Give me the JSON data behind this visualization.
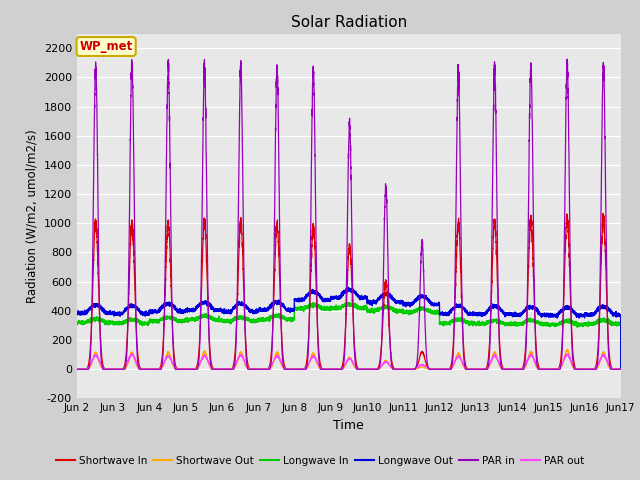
{
  "title": "Solar Radiation",
  "xlabel": "Time",
  "ylabel": "Radiation (W/m2, umol/m2/s)",
  "ylim": [
    -200,
    2300
  ],
  "yticks": [
    -200,
    0,
    200,
    400,
    600,
    800,
    1000,
    1200,
    1400,
    1600,
    1800,
    2000,
    2200
  ],
  "fig_bg_color": "#d0d0d0",
  "plot_bg_color": "#e8e8e8",
  "legend_labels": [
    "Shortwave In",
    "Shortwave Out",
    "Longwave In",
    "Longwave Out",
    "PAR in",
    "PAR out"
  ],
  "legend_colors": [
    "#dd0000",
    "#ffaa00",
    "#00cc00",
    "#0000dd",
    "#9900bb",
    "#ff44ff"
  ],
  "annotation_text": "WP_met",
  "annotation_color": "#cc0000",
  "annotation_bg": "#ffffcc",
  "annotation_border": "#ccaa00",
  "n_days": 15,
  "n_per_day": 480,
  "start_day": 2,
  "shortwave_in_peaks": [
    1010,
    1000,
    1000,
    1010,
    1010,
    990,
    980,
    840,
    600,
    120,
    990,
    1010,
    1030,
    1040,
    1030
  ],
  "shortwave_out_peaks": [
    115,
    115,
    115,
    120,
    115,
    115,
    110,
    80,
    60,
    15,
    110,
    115,
    120,
    130,
    115
  ],
  "longwave_in_base": [
    320,
    315,
    330,
    340,
    330,
    340,
    415,
    420,
    400,
    390,
    315,
    310,
    310,
    305,
    310
  ],
  "longwave_out_base": [
    385,
    380,
    395,
    405,
    395,
    405,
    475,
    490,
    460,
    445,
    380,
    378,
    372,
    368,
    374
  ],
  "par_in_peaks": [
    2080,
    2090,
    2060,
    2060,
    2070,
    2050,
    2050,
    1670,
    1250,
    860,
    2050,
    2060,
    2080,
    2090,
    2080
  ],
  "par_out_peaks": [
    95,
    100,
    90,
    92,
    95,
    90,
    88,
    72,
    50,
    30,
    88,
    92,
    96,
    100,
    95
  ],
  "lw_diurnal_amp": 25,
  "lw_out_diurnal_amp": 55,
  "peak_sigma_hours": 1.8,
  "par_sigma_hours": 1.4
}
